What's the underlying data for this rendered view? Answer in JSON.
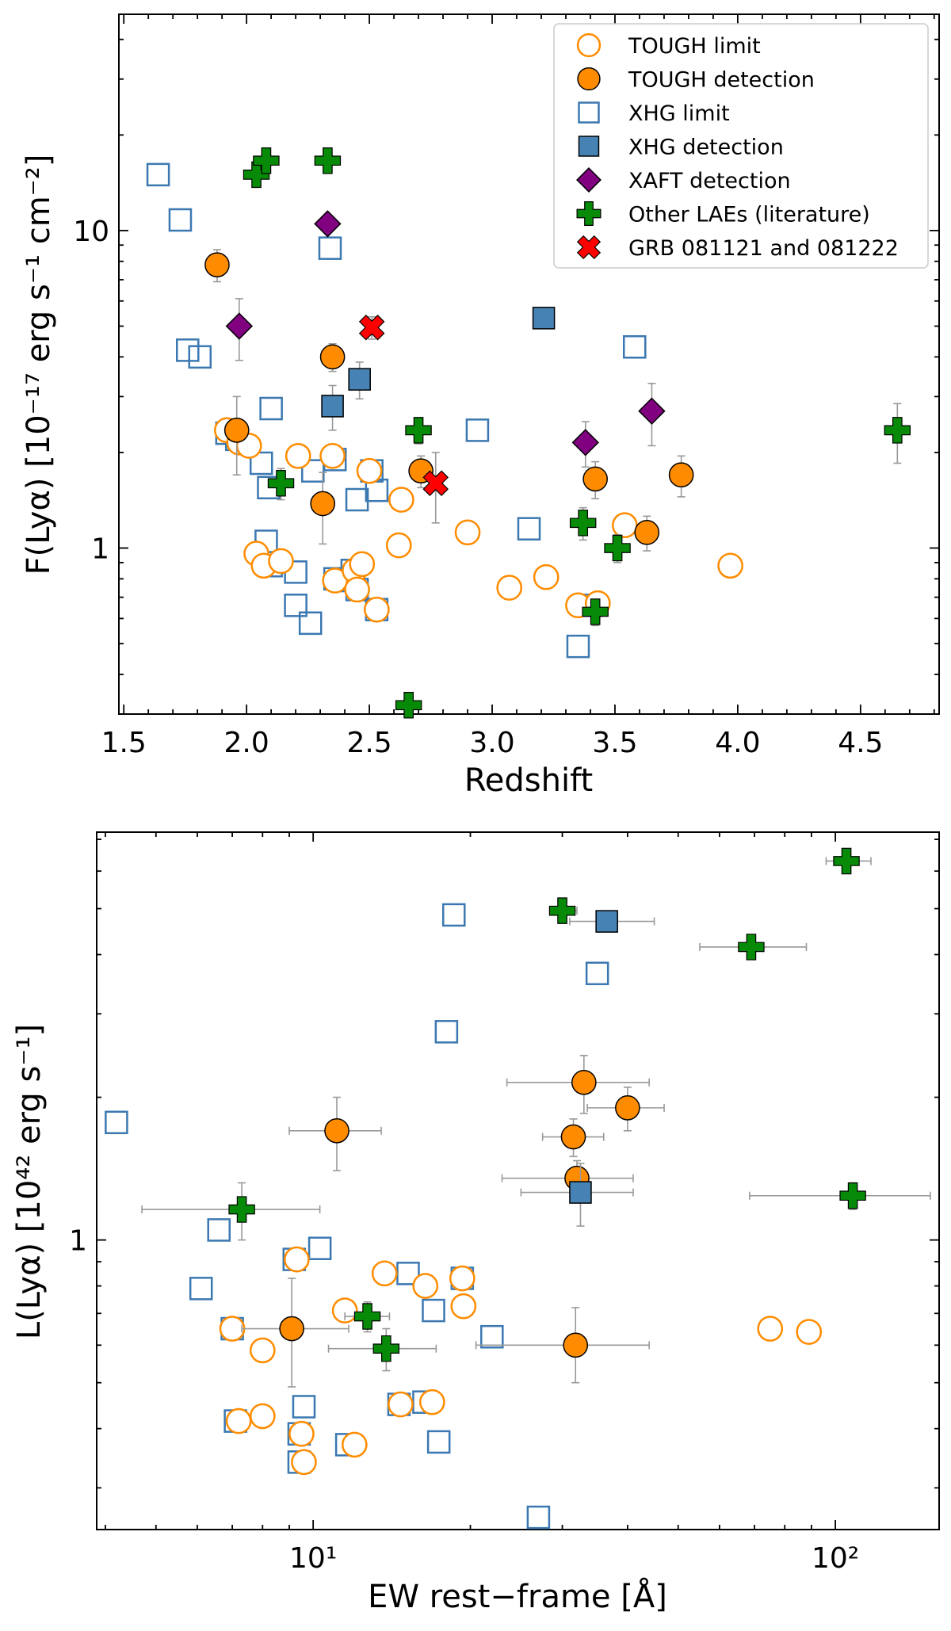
{
  "colors": {
    "tough": "#ff8c00",
    "xhg": "#3b78b1",
    "xhg_fill": "#4682b4",
    "xaft": "#800080",
    "lae": "#078a07",
    "grb": "#ff0000",
    "errbar": "#999999"
  },
  "chart_data": [
    {
      "type": "scatter",
      "id": "top",
      "xlabel": "Redshift",
      "ylabel": "F(Lyα) [10⁻¹⁷ erg s⁻¹ cm⁻²]",
      "xscale": "linear",
      "yscale": "log",
      "xlim": [
        1.48,
        4.82
      ],
      "ylim": [
        0.3,
        48
      ],
      "xticks": [
        1.5,
        2.0,
        2.5,
        3.0,
        3.5,
        4.0,
        4.5
      ],
      "xtick_labels": [
        "1.5",
        "2.0",
        "2.5",
        "3.0",
        "3.5",
        "4.0",
        "4.5"
      ],
      "yticks": [
        1,
        10
      ],
      "ytick_labels": [
        "1",
        "10"
      ],
      "legend_position": "top-right",
      "legend": [
        {
          "key": "tough_limit",
          "label": "TOUGH limit"
        },
        {
          "key": "tough_det",
          "label": "TOUGH detection"
        },
        {
          "key": "xhg_limit",
          "label": "XHG limit"
        },
        {
          "key": "xhg_det",
          "label": "XHG detection"
        },
        {
          "key": "xaft_det",
          "label": "XAFT detection"
        },
        {
          "key": "lae",
          "label": "Other LAEs (literature)"
        },
        {
          "key": "grb",
          "label": "GRB 081121 and 081222"
        }
      ],
      "series": [
        {
          "key": "xhg_limit",
          "points": [
            [
              1.64,
              15.0
            ],
            [
              1.73,
              10.8
            ],
            [
              1.76,
              4.2
            ],
            [
              1.81,
              4.0
            ],
            [
              1.92,
              2.3
            ],
            [
              1.96,
              2.2
            ],
            [
              2.06,
              1.85
            ],
            [
              2.09,
              1.55
            ],
            [
              2.1,
              2.75
            ],
            [
              2.08,
              1.05
            ],
            [
              2.1,
              0.88
            ],
            [
              2.2,
              0.84
            ],
            [
              2.2,
              0.66
            ],
            [
              2.26,
              0.58
            ],
            [
              2.27,
              1.75
            ],
            [
              2.34,
              8.8
            ],
            [
              2.36,
              1.9
            ],
            [
              2.36,
              0.8
            ],
            [
              2.42,
              0.79
            ],
            [
              2.43,
              0.85
            ],
            [
              2.45,
              0.74
            ],
            [
              2.45,
              1.42
            ],
            [
              2.51,
              1.75
            ],
            [
              2.53,
              1.52
            ],
            [
              2.53,
              0.64
            ],
            [
              2.94,
              2.35
            ],
            [
              3.15,
              1.15
            ],
            [
              3.35,
              0.49
            ],
            [
              3.4,
              0.66
            ],
            [
              3.58,
              4.3
            ]
          ]
        },
        {
          "key": "tough_limit",
          "points": [
            [
              1.92,
              2.35
            ],
            [
              1.97,
              2.15
            ],
            [
              2.01,
              2.1
            ],
            [
              2.04,
              0.96
            ],
            [
              2.07,
              0.88
            ],
            [
              2.14,
              0.91
            ],
            [
              2.21,
              1.95
            ],
            [
              2.35,
              1.95
            ],
            [
              2.36,
              0.79
            ],
            [
              2.44,
              0.85
            ],
            [
              2.45,
              0.74
            ],
            [
              2.47,
              0.89
            ],
            [
              2.5,
              1.75
            ],
            [
              2.53,
              0.64
            ],
            [
              2.62,
              1.02
            ],
            [
              2.63,
              1.42
            ],
            [
              2.9,
              1.12
            ],
            [
              3.07,
              0.75
            ],
            [
              3.22,
              0.81
            ],
            [
              3.35,
              0.66
            ],
            [
              3.43,
              0.67
            ],
            [
              3.54,
              1.18
            ],
            [
              3.97,
              0.88
            ]
          ]
        },
        {
          "key": "tough_det",
          "points": [
            [
              1.88,
              7.8,
              0.9
            ],
            [
              1.96,
              2.35,
              0.65
            ],
            [
              2.31,
              1.38,
              0.35
            ],
            [
              2.35,
              4.0,
              0.4
            ],
            [
              2.71,
              1.75,
              0.2
            ],
            [
              3.42,
              1.65,
              0.22
            ],
            [
              3.63,
              1.12,
              0.14
            ],
            [
              3.77,
              1.7,
              0.25
            ]
          ]
        },
        {
          "key": "xhg_det",
          "points": [
            [
              2.35,
              2.8,
              0.45
            ],
            [
              2.46,
              3.4,
              0.45
            ],
            [
              3.21,
              5.3,
              0
            ]
          ]
        },
        {
          "key": "xaft_det",
          "points": [
            [
              1.97,
              5.0,
              1.1
            ],
            [
              2.33,
              10.5,
              0
            ],
            [
              3.38,
              2.15,
              0.35
            ],
            [
              3.65,
              2.7,
              0.6
            ]
          ]
        },
        {
          "key": "lae",
          "points": [
            [
              2.04,
              15.0,
              0
            ],
            [
              2.08,
              16.6,
              0
            ],
            [
              2.14,
              1.6,
              0.18
            ],
            [
              2.33,
              16.6,
              0
            ],
            [
              2.66,
              0.32,
              0
            ],
            [
              2.7,
              2.35,
              0.22
            ],
            [
              3.37,
              1.2,
              0.14
            ],
            [
              3.51,
              1.0,
              0.1
            ],
            [
              3.42,
              0.63,
              0.06
            ],
            [
              4.65,
              2.35,
              0.5
            ]
          ]
        },
        {
          "key": "grb",
          "points": [
            [
              2.51,
              4.95,
              0.4
            ],
            [
              2.77,
              1.6,
              0.4
            ]
          ]
        }
      ]
    },
    {
      "type": "scatter",
      "id": "bottom",
      "xlabel": "EW rest−frame [Å]",
      "ylabel": "L(Lyα) [10⁴² erg s⁻¹]",
      "xscale": "log",
      "yscale": "log",
      "xlim": [
        3.85,
        158
      ],
      "ylim": [
        0.245,
        7.25
      ],
      "xticks": [
        10,
        100
      ],
      "xtick_labels": [
        "10¹",
        "10²"
      ],
      "yticks": [
        1
      ],
      "ytick_labels": [
        "1"
      ],
      "series": [
        {
          "key": "xhg_limit",
          "points": [
            [
              4.2,
              1.77
            ],
            [
              6.1,
              0.79
            ],
            [
              6.6,
              1.05
            ],
            [
              7.0,
              0.65
            ],
            [
              7.1,
              0.415
            ],
            [
              9.2,
              0.91
            ],
            [
              9.4,
              0.39
            ],
            [
              9.4,
              0.34
            ],
            [
              9.6,
              0.445
            ],
            [
              10.3,
              0.96
            ],
            [
              11.6,
              0.37
            ],
            [
              14.6,
              0.45
            ],
            [
              15.2,
              0.85
            ],
            [
              16.3,
              0.455
            ],
            [
              17.0,
              0.71
            ],
            [
              17.4,
              0.375
            ],
            [
              18.0,
              2.75
            ],
            [
              18.6,
              4.85
            ],
            [
              19.3,
              0.83
            ],
            [
              22.0,
              0.625
            ],
            [
              27.0,
              0.26
            ],
            [
              35.0,
              3.65
            ]
          ]
        },
        {
          "key": "tough_limit",
          "points": [
            [
              7.0,
              0.65
            ],
            [
              7.2,
              0.415
            ],
            [
              8.0,
              0.585
            ],
            [
              8.0,
              0.425
            ],
            [
              9.3,
              0.91
            ],
            [
              9.6,
              0.34
            ],
            [
              9.5,
              0.39
            ],
            [
              11.5,
              0.71
            ],
            [
              12.0,
              0.37
            ],
            [
              13.7,
              0.85
            ],
            [
              14.7,
              0.45
            ],
            [
              16.4,
              0.8
            ],
            [
              16.9,
              0.455
            ],
            [
              19.3,
              0.83
            ],
            [
              19.4,
              0.725
            ],
            [
              75.0,
              0.65
            ],
            [
              89.0,
              0.64
            ]
          ]
        },
        {
          "key": "tough_det",
          "points": [
            [
              9.1,
              0.65,
              0.16,
              0.18,
              7.3,
              11.7
            ],
            [
              11.1,
              1.7,
              0.3,
              0.3,
              9.0,
              13.5
            ],
            [
              31.8,
              0.6,
              0.1,
              0.12,
              20.5,
              44.0
            ],
            [
              31.5,
              1.65,
              0.15,
              0.15,
              27.5,
              36.0
            ],
            [
              32.0,
              1.35,
              0.12,
              0.12,
              23.0,
              41.0
            ],
            [
              33.0,
              2.15,
              0.3,
              0.3,
              23.5,
              44.0
            ],
            [
              40.0,
              1.9,
              0.2,
              0.2,
              33.5,
              47.0
            ]
          ]
        },
        {
          "key": "xhg_det",
          "points": [
            [
              32.5,
              1.26,
              0.19,
              0.19,
              25.0,
              41.0
            ],
            [
              36.5,
              4.7,
              0.1,
              0.1,
              31.0,
              45.0
            ]
          ]
        },
        {
          "key": "lae",
          "points": [
            [
              7.3,
              1.16,
              0.16,
              0.16,
              4.7,
              10.3
            ],
            [
              12.7,
              0.69,
              0.05,
              0.05,
              11.5,
              14.0
            ],
            [
              13.8,
              0.59,
              0.06,
              0.06,
              10.7,
              17.2
            ],
            [
              30.0,
              4.95,
              0.05,
              0.05,
              28.5,
              32.0
            ],
            [
              69.0,
              4.15,
              0.2,
              0.2,
              55.0,
              88.0
            ],
            [
              105.0,
              6.3,
              0.1,
              0.1,
              96.0,
              117.0
            ],
            [
              108.0,
              1.24,
              0.08,
              0.08,
              68.5,
              152.0
            ]
          ]
        }
      ]
    }
  ]
}
